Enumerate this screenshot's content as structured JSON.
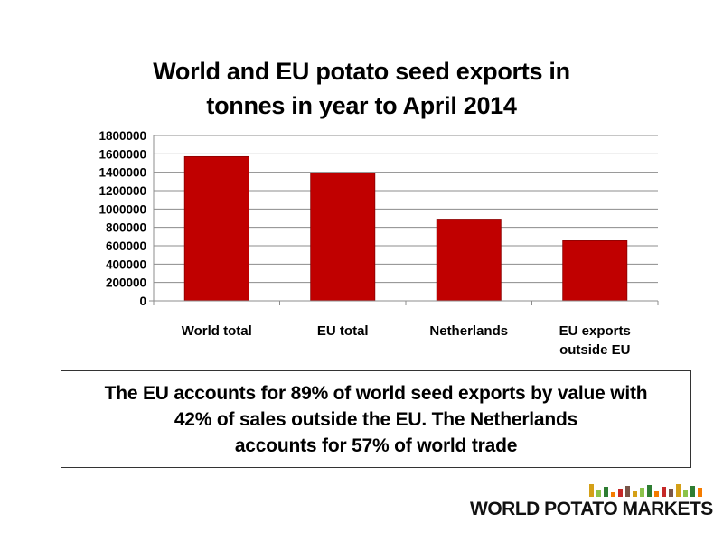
{
  "chart_data": {
    "type": "bar",
    "title": [
      "World and EU potato seed exports in",
      "tonnes in year to April 2014"
    ],
    "categories": [
      [
        "World total"
      ],
      [
        "EU total"
      ],
      [
        "Netherlands"
      ],
      [
        "EU exports",
        "outside EU"
      ]
    ],
    "values": [
      1570000,
      1390000,
      890000,
      655000
    ],
    "yticks": [
      "0",
      "200000",
      "400000",
      "600000",
      "800000",
      "1000000",
      "1200000",
      "1400000",
      "1600000",
      "1800000"
    ],
    "ylim": [
      0,
      1800000
    ],
    "grid": true,
    "bar_color": "#c00000",
    "grid_color": "#8c8c8c"
  },
  "note": {
    "lines": [
      "The EU accounts for 89% of world seed exports by value with",
      "42% of sales outside the EU. The Netherlands",
      "accounts for 57% of world trade"
    ]
  },
  "brand": {
    "text": "WORLD POTATO MARKETS",
    "logo_colors": [
      "#d4a017",
      "#8bc34a",
      "#2e7d32",
      "#f57c00",
      "#c62828",
      "#795548"
    ]
  }
}
